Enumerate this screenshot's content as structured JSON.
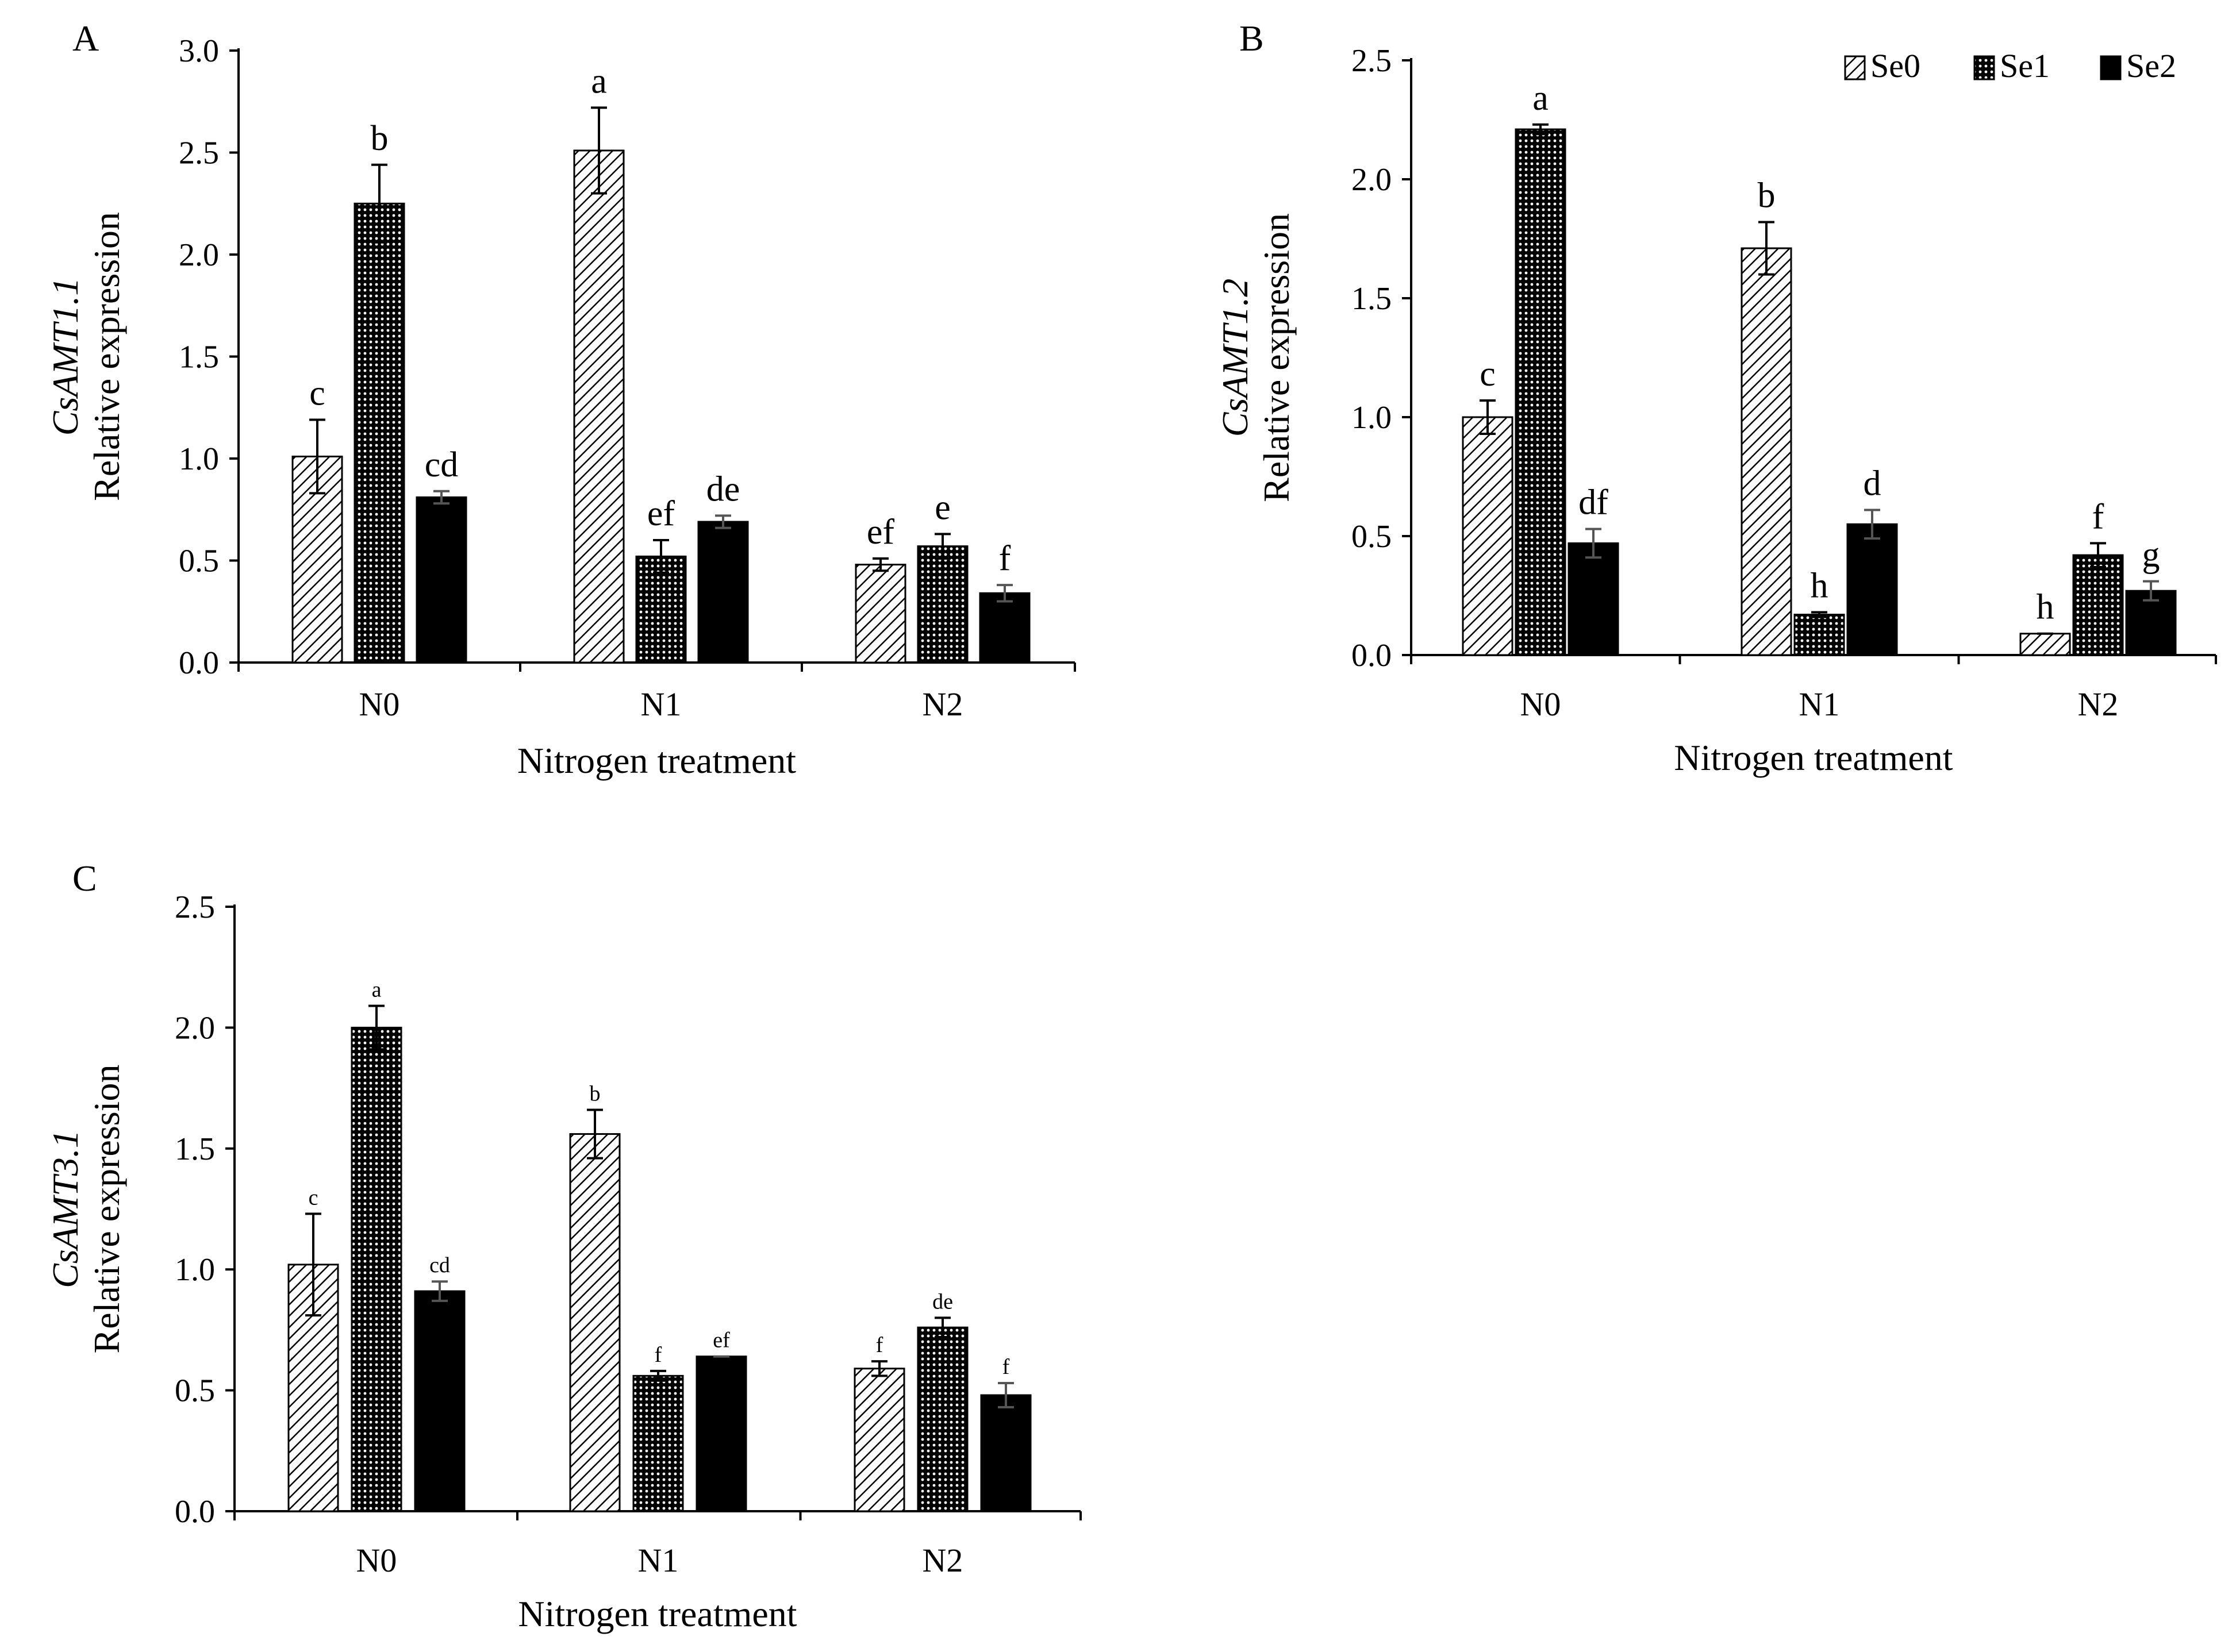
{
  "figure": {
    "legend": [
      {
        "name": "Se0",
        "fill": "hatch",
        "icon": "diagonal-hatch-swatch"
      },
      {
        "name": "Se1",
        "fill": "dots",
        "icon": "dotted-swatch"
      },
      {
        "name": "Se2",
        "fill": "solid",
        "icon": "solid-black-swatch"
      }
    ],
    "colors": {
      "bar_edge": "#000000",
      "solid": "#000000",
      "hatch_line": "#000000",
      "dots_bg": "#ffffff",
      "error_bar_se2": "#555555",
      "axis": "#000000",
      "gray_text": "#666666"
    }
  },
  "chart_data": [
    {
      "panel": "A",
      "type": "bar",
      "title": "",
      "ylabel_gene": "CsAMT1.1",
      "ylabel": "Relative expression",
      "xlabel": "Nitrogen treatment",
      "categories": [
        "N0",
        "N1",
        "N2"
      ],
      "ylim": [
        0,
        3.0
      ],
      "yticks": [
        0.0,
        0.5,
        1.0,
        1.5,
        2.0,
        2.5,
        3.0
      ],
      "ytick_labels": [
        "0.0",
        "0.5",
        "1.0",
        "1.5",
        "2.0",
        "2.5",
        "3.0"
      ],
      "tick_label_size": "large",
      "gray_category_labels": false,
      "series": [
        {
          "name": "Se0",
          "values": [
            1.01,
            2.51,
            0.48
          ],
          "errors": [
            0.18,
            0.21,
            0.03
          ],
          "letters": [
            "c",
            "a",
            "ef"
          ]
        },
        {
          "name": "Se1",
          "values": [
            2.25,
            0.52,
            0.57
          ],
          "errors": [
            0.19,
            0.08,
            0.06
          ],
          "letters": [
            "b",
            "ef",
            "e"
          ]
        },
        {
          "name": "Se2",
          "values": [
            0.81,
            0.69,
            0.34
          ],
          "errors": [
            0.03,
            0.03,
            0.04
          ],
          "letters": [
            "cd",
            "de",
            "f"
          ]
        }
      ]
    },
    {
      "panel": "B",
      "type": "bar",
      "title": "",
      "ylabel_gene": "CsAMT1.2",
      "ylabel": "Relative expression",
      "xlabel": "Nitrogen treatment",
      "categories": [
        "N0",
        "N1",
        "N2"
      ],
      "ylim": [
        0,
        2.5
      ],
      "yticks": [
        0.0,
        0.5,
        1.0,
        1.5,
        2.0,
        2.5
      ],
      "ytick_labels": [
        "0.0",
        "0.5",
        "1.0",
        "1.5",
        "2.0",
        "2.5"
      ],
      "tick_label_size": "large",
      "gray_category_labels": false,
      "show_legend": true,
      "series": [
        {
          "name": "Se0",
          "values": [
            1.0,
            1.71,
            0.09
          ],
          "errors": [
            0.07,
            0.11,
            0.0
          ],
          "letters": [
            "c",
            "b",
            "h"
          ]
        },
        {
          "name": "Se1",
          "values": [
            2.21,
            0.17,
            0.42
          ],
          "errors": [
            0.02,
            0.01,
            0.05
          ],
          "letters": [
            "a",
            "h",
            "f"
          ]
        },
        {
          "name": "Se2",
          "values": [
            0.47,
            0.55,
            0.27
          ],
          "errors": [
            0.06,
            0.06,
            0.04
          ],
          "letters": [
            "df",
            "d",
            "g"
          ]
        }
      ]
    },
    {
      "panel": "C",
      "type": "bar",
      "title": "",
      "ylabel_gene": "CsAMT3.1",
      "ylabel": "Relative expression",
      "xlabel": "Nitrogen treatment",
      "categories": [
        "N0",
        "N1",
        "N2"
      ],
      "ylim": [
        0,
        2.5
      ],
      "yticks": [
        0.0,
        0.5,
        1.0,
        1.5,
        2.0,
        2.5
      ],
      "ytick_labels": [
        "0.0",
        "0.5",
        "1.0",
        "1.5",
        "2.0",
        "2.5"
      ],
      "tick_label_size": "large",
      "gray_category_labels": true,
      "letter_size": "small",
      "series": [
        {
          "name": "Se0",
          "values": [
            1.02,
            1.56,
            0.59
          ],
          "errors": [
            0.21,
            0.1,
            0.03
          ],
          "letters": [
            "c",
            "b",
            "f"
          ]
        },
        {
          "name": "Se1",
          "values": [
            2.0,
            0.56,
            0.76
          ],
          "errors": [
            0.09,
            0.02,
            0.04
          ],
          "letters": [
            "a",
            "f",
            "de"
          ]
        },
        {
          "name": "Se2",
          "values": [
            0.91,
            0.64,
            0.48
          ],
          "errors": [
            0.04,
            0.0,
            0.05
          ],
          "letters": [
            "cd",
            "ef",
            "f"
          ]
        }
      ]
    }
  ]
}
